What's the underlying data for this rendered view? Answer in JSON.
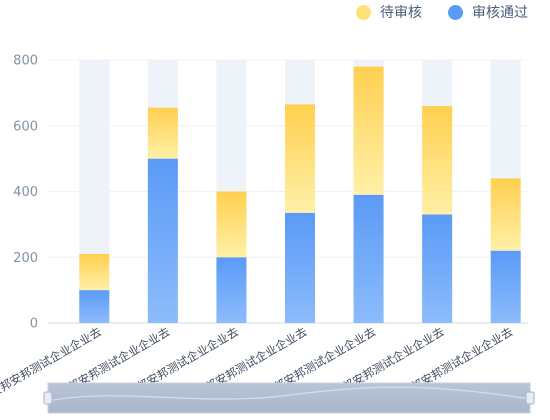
{
  "chart_data": {
    "type": "bar",
    "stacked": true,
    "categories": [
      "安邦安邦测试企业企业去",
      "安邦安邦测试企业企业去",
      "安邦安邦测试企业企业去",
      "安邦安邦测试企业企业去",
      "安邦安邦测试企业企业去",
      "安邦安邦测试企业企业去",
      "安邦安邦测试企业企业去"
    ],
    "series": [
      {
        "name": "审核通过",
        "values": [
          100,
          500,
          200,
          335,
          390,
          330,
          220
        ],
        "color": "#5b9cf8"
      },
      {
        "name": "待审核",
        "values": [
          110,
          155,
          200,
          330,
          390,
          330,
          220
        ],
        "color": "#ffd35c"
      }
    ],
    "background_bar_max": 800,
    "ylim": [
      0,
      800
    ],
    "yticks": [
      0,
      200,
      400,
      600,
      800
    ],
    "grid": true,
    "legend_position": "top-right",
    "title": "",
    "xlabel": "",
    "ylabel": "",
    "datazoom_slider": true
  }
}
